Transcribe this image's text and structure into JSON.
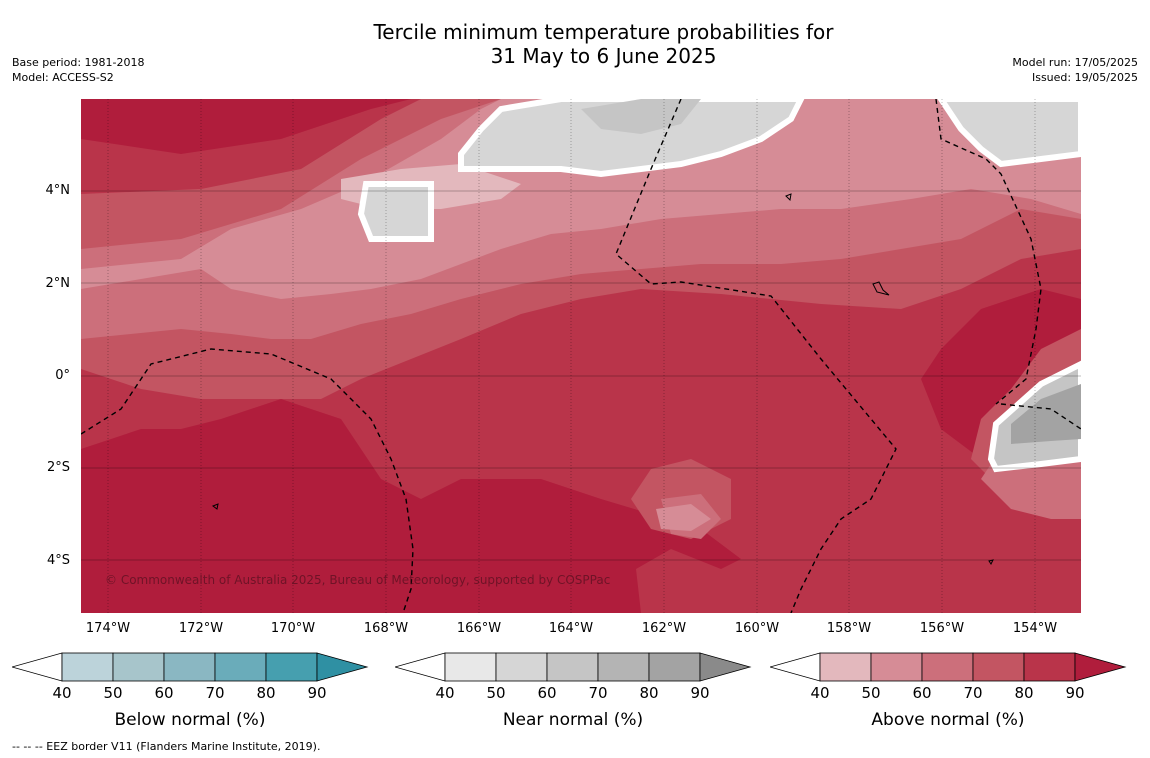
{
  "title": "Tercile minimum temperature probabilities for\n31 May to 6 June 2025",
  "meta_left": {
    "base_period": "Base period: 1981-2018",
    "model": "Model: ACCESS-S2"
  },
  "meta_right": {
    "model_run": "Model run: 17/05/2025",
    "issued": "Issued: 19/05/2025"
  },
  "map": {
    "lat_labels": [
      "4°N",
      "2°N",
      "0°",
      "2°S",
      "4°S"
    ],
    "lon_labels": [
      "174°W",
      "172°W",
      "170°W",
      "168°W",
      "166°W",
      "164°W",
      "162°W",
      "160°W",
      "158°W",
      "156°W",
      "154°W"
    ],
    "copyright": "© Commonwealth of Australia 2025, Bureau of Meteorology, supported by COSPPac"
  },
  "colorbars": [
    {
      "title": "Below normal (%)",
      "ticks": [
        "40",
        "50",
        "60",
        "70",
        "80",
        "90"
      ],
      "colors": [
        "#bcd3da",
        "#a7c5cb",
        "#8ab7c2",
        "#6aacba",
        "#469faf",
        "#2f90a3"
      ]
    },
    {
      "title": "Near normal (%)",
      "ticks": [
        "40",
        "50",
        "60",
        "70",
        "80",
        "90"
      ],
      "colors": [
        "#e8e8e8",
        "#d6d6d6",
        "#c5c5c5",
        "#b4b4b4",
        "#a3a3a3",
        "#8a8a8a"
      ]
    },
    {
      "title": "Above normal (%)",
      "ticks": [
        "40",
        "50",
        "60",
        "70",
        "80",
        "90"
      ],
      "colors": [
        "#e3b8bd",
        "#d68c96",
        "#cc6f7b",
        "#c35562",
        "#b9344a",
        "#b01d3c"
      ]
    }
  ],
  "footer": "--  --  -- EEZ border V11 (Flanders Marine Institute, 2019)."
}
